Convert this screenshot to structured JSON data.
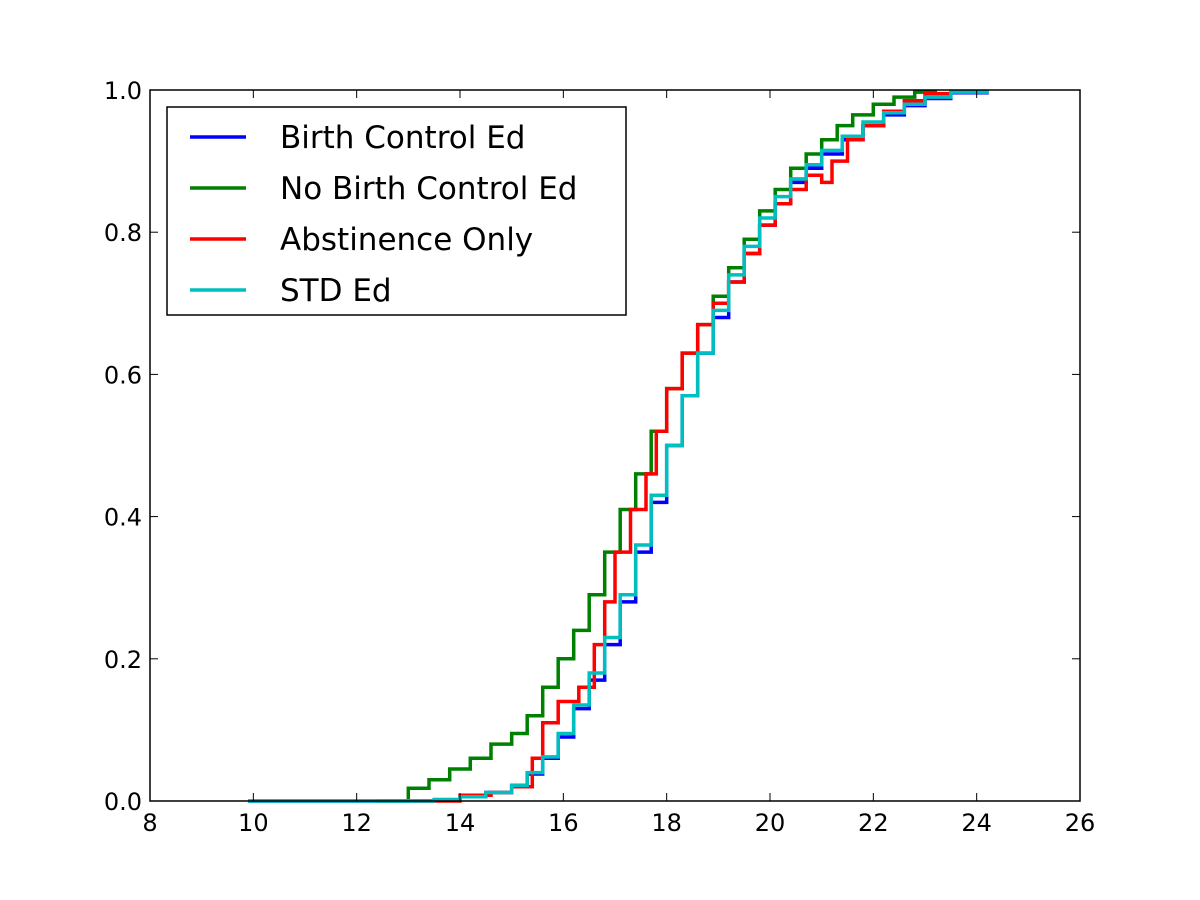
{
  "chart_data": {
    "type": "line",
    "step": true,
    "title": "",
    "xlabel": "",
    "ylabel": "",
    "xlim": [
      8,
      26
    ],
    "ylim": [
      0.0,
      1.0
    ],
    "xticks": [
      "8",
      "10",
      "12",
      "14",
      "16",
      "18",
      "20",
      "22",
      "24",
      "26"
    ],
    "yticks": [
      "0.0",
      "0.2",
      "0.4",
      "0.6",
      "0.8",
      "1.0"
    ],
    "grid": false,
    "legend_position": "top-left",
    "series": [
      {
        "name": "Birth Control Ed",
        "color": "#0000ff",
        "x": [
          9.9,
          13.5,
          14.0,
          14.5,
          15.0,
          15.3,
          15.6,
          15.9,
          16.2,
          16.5,
          16.8,
          17.1,
          17.4,
          17.7,
          18.0,
          18.3,
          18.6,
          18.9,
          19.2,
          19.5,
          19.8,
          20.1,
          20.4,
          20.7,
          21.0,
          21.4,
          21.8,
          22.2,
          22.6,
          23.0,
          23.5,
          24.2
        ],
        "y": [
          0.0,
          0.002,
          0.006,
          0.012,
          0.022,
          0.038,
          0.06,
          0.09,
          0.13,
          0.17,
          0.22,
          0.28,
          0.35,
          0.42,
          0.5,
          0.57,
          0.63,
          0.68,
          0.73,
          0.77,
          0.81,
          0.84,
          0.87,
          0.89,
          0.91,
          0.93,
          0.95,
          0.965,
          0.978,
          0.988,
          0.996,
          1.0
        ]
      },
      {
        "name": "No Birth Control Ed",
        "color": "#008000",
        "x": [
          12.4,
          13.0,
          13.4,
          13.8,
          14.2,
          14.6,
          15.0,
          15.3,
          15.6,
          15.9,
          16.2,
          16.5,
          16.8,
          17.1,
          17.4,
          17.7,
          18.0,
          18.3,
          18.6,
          18.9,
          19.2,
          19.5,
          19.8,
          20.1,
          20.4,
          20.7,
          21.0,
          21.3,
          21.6,
          22.0,
          22.4,
          22.8,
          23.2
        ],
        "y": [
          0.0,
          0.018,
          0.03,
          0.045,
          0.06,
          0.08,
          0.095,
          0.12,
          0.16,
          0.2,
          0.24,
          0.29,
          0.35,
          0.41,
          0.46,
          0.52,
          0.58,
          0.63,
          0.67,
          0.71,
          0.75,
          0.79,
          0.83,
          0.86,
          0.89,
          0.91,
          0.93,
          0.95,
          0.965,
          0.98,
          0.99,
          0.997,
          1.0
        ]
      },
      {
        "name": "Abstinence Only",
        "color": "#ff0000",
        "x": [
          13.1,
          14.0,
          14.6,
          15.0,
          15.4,
          15.6,
          15.9,
          16.3,
          16.6,
          16.8,
          17.0,
          17.3,
          17.6,
          17.8,
          18.0,
          18.3,
          18.6,
          18.9,
          19.2,
          19.5,
          19.8,
          20.1,
          20.4,
          20.7,
          21.0,
          21.2,
          21.5,
          21.8,
          22.2,
          22.6,
          23.0,
          23.5,
          24.0
        ],
        "y": [
          0.0,
          0.008,
          0.012,
          0.02,
          0.06,
          0.11,
          0.14,
          0.16,
          0.22,
          0.28,
          0.35,
          0.41,
          0.46,
          0.52,
          0.58,
          0.63,
          0.67,
          0.7,
          0.73,
          0.77,
          0.81,
          0.84,
          0.86,
          0.88,
          0.87,
          0.9,
          0.93,
          0.95,
          0.97,
          0.985,
          0.995,
          0.998,
          1.0
        ]
      },
      {
        "name": "STD Ed",
        "color": "#00bfbf",
        "x": [
          9.9,
          13.5,
          14.0,
          14.5,
          15.0,
          15.3,
          15.6,
          15.9,
          16.2,
          16.5,
          16.8,
          17.1,
          17.4,
          17.7,
          18.0,
          18.3,
          18.6,
          18.9,
          19.2,
          19.5,
          19.8,
          20.1,
          20.4,
          20.7,
          21.0,
          21.4,
          21.8,
          22.2,
          22.6,
          23.0,
          23.5,
          24.2
        ],
        "y": [
          0.0,
          0.002,
          0.006,
          0.012,
          0.022,
          0.04,
          0.062,
          0.095,
          0.135,
          0.18,
          0.23,
          0.29,
          0.36,
          0.43,
          0.5,
          0.57,
          0.63,
          0.69,
          0.74,
          0.78,
          0.82,
          0.85,
          0.875,
          0.895,
          0.915,
          0.935,
          0.955,
          0.968,
          0.98,
          0.99,
          0.997,
          1.0
        ]
      }
    ]
  }
}
